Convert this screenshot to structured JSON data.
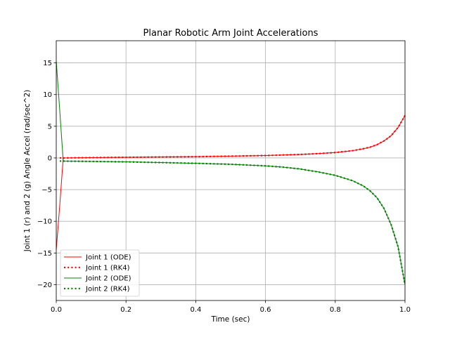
{
  "chart_data": {
    "type": "line",
    "title": "Planar Robotic Arm Joint Accelerations",
    "xlabel": "Time (sec)",
    "ylabel": "Joint 1 (r) and 2 (g) Angle Accel (rad/sec^2)",
    "xlim": [
      0.0,
      1.0
    ],
    "ylim": [
      -22.5,
      18.5
    ],
    "xticks": [
      0.0,
      0.2,
      0.4,
      0.6,
      0.8,
      1.0
    ],
    "xtick_labels": [
      "0.0",
      "0.2",
      "0.4",
      "0.6",
      "0.8",
      "1.0"
    ],
    "yticks": [
      15,
      10,
      5,
      0,
      -5,
      -10,
      -15,
      -20
    ],
    "ytick_labels": [
      "15",
      "10",
      "5",
      "0",
      "−5",
      "−10",
      "−15",
      "−20"
    ],
    "grid": true,
    "legend_position": "lower-left",
    "series": [
      {
        "name": "Joint 1 (ODE)",
        "color": "#ff0000",
        "style": "solid",
        "x": [
          0.0,
          0.01,
          0.02,
          0.05,
          0.1,
          0.2,
          0.3,
          0.4,
          0.5,
          0.6,
          0.7,
          0.75,
          0.8,
          0.85,
          0.88,
          0.9,
          0.92,
          0.94,
          0.96,
          0.98,
          1.0
        ],
        "y": [
          -14.5,
          -7.5,
          0.0,
          0.02,
          0.05,
          0.1,
          0.15,
          0.2,
          0.28,
          0.38,
          0.55,
          0.68,
          0.85,
          1.15,
          1.45,
          1.7,
          2.1,
          2.7,
          3.5,
          4.8,
          6.7
        ]
      },
      {
        "name": "Joint 1 (RK4)",
        "color": "#ff0000",
        "style": "dotted",
        "x": [
          0.01,
          0.02,
          0.05,
          0.1,
          0.2,
          0.3,
          0.4,
          0.5,
          0.6,
          0.7,
          0.75,
          0.8,
          0.85,
          0.88,
          0.9,
          0.92,
          0.94,
          0.96,
          0.98,
          1.0
        ],
        "y": [
          0.0,
          0.0,
          0.02,
          0.05,
          0.1,
          0.15,
          0.2,
          0.28,
          0.38,
          0.55,
          0.68,
          0.85,
          1.15,
          1.45,
          1.7,
          2.1,
          2.7,
          3.5,
          4.8,
          6.7
        ]
      },
      {
        "name": "Joint 2 (ODE)",
        "color": "#008000",
        "style": "solid",
        "x": [
          0.0,
          0.01,
          0.02,
          0.05,
          0.1,
          0.2,
          0.3,
          0.4,
          0.5,
          0.6,
          0.65,
          0.7,
          0.75,
          0.8,
          0.85,
          0.88,
          0.9,
          0.92,
          0.94,
          0.96,
          0.98,
          1.0
        ],
        "y": [
          15.3,
          7.5,
          -0.5,
          -0.52,
          -0.55,
          -0.62,
          -0.73,
          -0.85,
          -1.0,
          -1.25,
          -1.45,
          -1.75,
          -2.2,
          -2.75,
          -3.6,
          -4.4,
          -5.2,
          -6.3,
          -8.0,
          -10.5,
          -14.0,
          -20.0
        ]
      },
      {
        "name": "Joint 2 (RK4)",
        "color": "#008000",
        "style": "dotted",
        "x": [
          0.01,
          0.02,
          0.05,
          0.1,
          0.2,
          0.3,
          0.4,
          0.5,
          0.6,
          0.65,
          0.7,
          0.75,
          0.8,
          0.85,
          0.88,
          0.9,
          0.92,
          0.94,
          0.96,
          0.98,
          1.0
        ],
        "y": [
          -0.5,
          -0.5,
          -0.52,
          -0.55,
          -0.62,
          -0.73,
          -0.85,
          -1.0,
          -1.25,
          -1.45,
          -1.75,
          -2.2,
          -2.75,
          -3.6,
          -4.4,
          -5.2,
          -6.3,
          -8.0,
          -10.5,
          -14.0,
          -20.0
        ]
      }
    ]
  }
}
